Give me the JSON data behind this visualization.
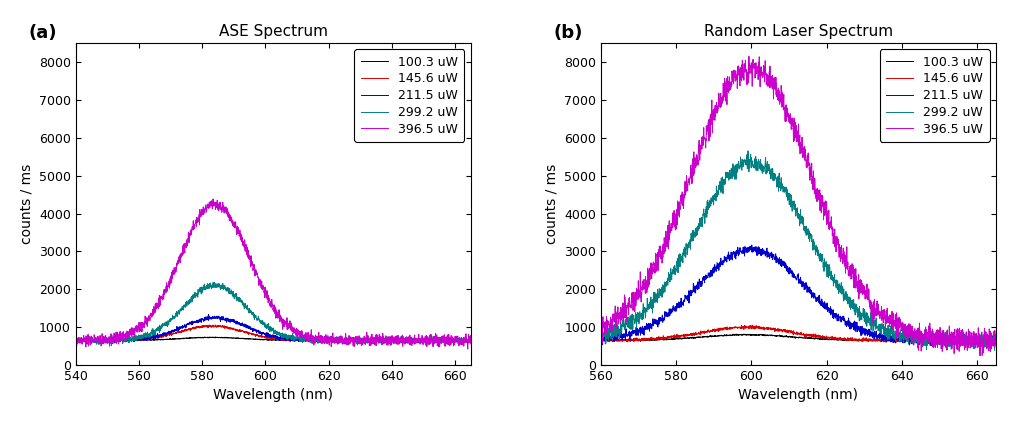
{
  "title_a": "ASE Spectrum",
  "title_b": "Random Laser Spectrum",
  "xlabel": "Wavelength (nm)",
  "ylabel": "counts / ms",
  "panel_a_label": "(a)",
  "panel_b_label": "(b)",
  "legend_labels": [
    "100.3 uW",
    "145.6 uW",
    "211.5 uW",
    "299.2 uW",
    "396.5 uW"
  ],
  "colors": [
    "#000000",
    "#dd0000",
    "#0000cc",
    "#008080",
    "#cc00cc"
  ],
  "xlim_a": [
    540,
    665
  ],
  "xlim_b": [
    560,
    665
  ],
  "ylim": [
    0,
    8500
  ],
  "yticks": [
    0,
    1000,
    2000,
    3000,
    4000,
    5000,
    6000,
    7000,
    8000
  ],
  "xticks_a": [
    540,
    560,
    580,
    600,
    620,
    640,
    660
  ],
  "xticks_b": [
    560,
    580,
    600,
    620,
    640,
    660
  ],
  "baseline": 650,
  "panel_a_peaks": [
    583,
    583,
    584,
    584,
    584
  ],
  "panel_a_widths": [
    10,
    10,
    10,
    10,
    11
  ],
  "panel_a_amplitudes": [
    80,
    380,
    600,
    1450,
    3600
  ],
  "panel_b_peaks": [
    599,
    599,
    600,
    600,
    600
  ],
  "panel_b_widths": [
    12,
    12,
    14,
    15,
    16
  ],
  "panel_b_amplitudes": [
    150,
    350,
    2400,
    4700,
    7200
  ],
  "noise_scale_a": [
    5,
    15,
    25,
    40,
    70
  ],
  "noise_scale_b": [
    8,
    20,
    60,
    100,
    150
  ],
  "n_points_a": 2000,
  "n_points_b": 1800,
  "seed_a": 42,
  "seed_b": 99
}
